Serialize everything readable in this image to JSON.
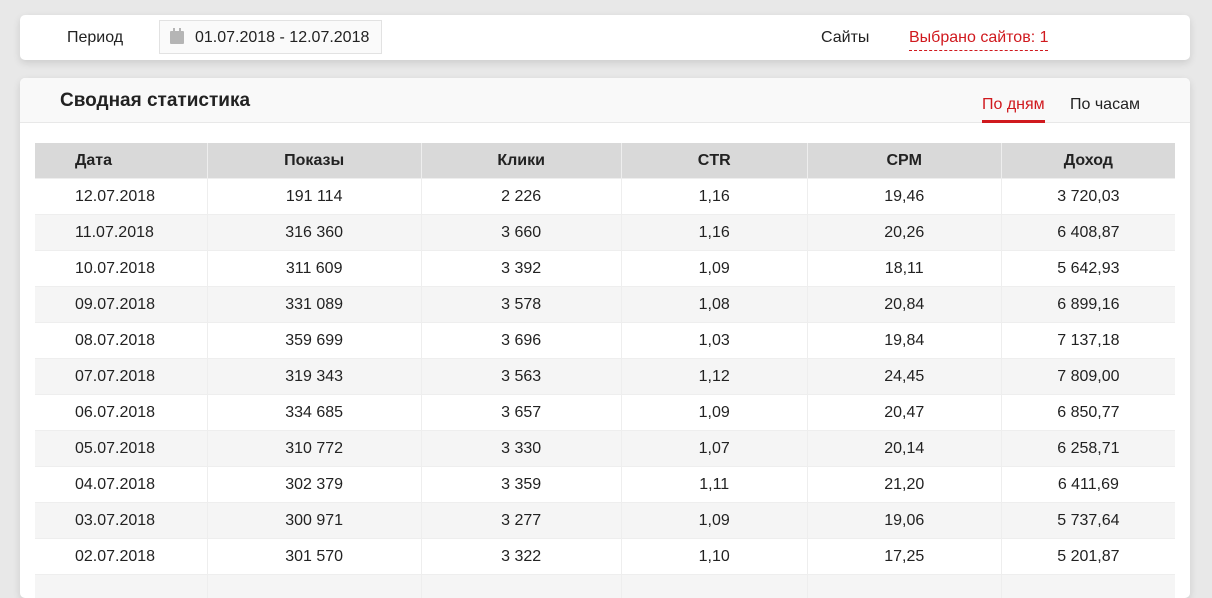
{
  "filters": {
    "period_label": "Период",
    "period_value": "01.07.2018 - 12.07.2018",
    "sites_label": "Сайты",
    "sites_value": "Выбрано сайтов: 1"
  },
  "main": {
    "title": "Сводная статистика",
    "tabs": [
      {
        "label": "По дням",
        "active": true
      },
      {
        "label": "По часам",
        "active": false
      }
    ],
    "accent": "#d0191e"
  },
  "table": {
    "columns": [
      "Дата",
      "Показы",
      "Клики",
      "CTR",
      "CPM",
      "Доход"
    ],
    "rows": [
      [
        "12.07.2018",
        "191 114",
        "2 226",
        "1,16",
        "19,46",
        "3 720,03"
      ],
      [
        "11.07.2018",
        "316 360",
        "3 660",
        "1,16",
        "20,26",
        "6 408,87"
      ],
      [
        "10.07.2018",
        "311 609",
        "3 392",
        "1,09",
        "18,11",
        "5 642,93"
      ],
      [
        "09.07.2018",
        "331 089",
        "3 578",
        "1,08",
        "20,84",
        "6 899,16"
      ],
      [
        "08.07.2018",
        "359 699",
        "3 696",
        "1,03",
        "19,84",
        "7 137,18"
      ],
      [
        "07.07.2018",
        "319 343",
        "3 563",
        "1,12",
        "24,45",
        "7 809,00"
      ],
      [
        "06.07.2018",
        "334 685",
        "3 657",
        "1,09",
        "20,47",
        "6 850,77"
      ],
      [
        "05.07.2018",
        "310 772",
        "3 330",
        "1,07",
        "20,14",
        "6 258,71"
      ],
      [
        "04.07.2018",
        "302 379",
        "3 359",
        "1,11",
        "21,20",
        "6 411,69"
      ],
      [
        "03.07.2018",
        "300 971",
        "3 277",
        "1,09",
        "19,06",
        "5 737,64"
      ],
      [
        "02.07.2018",
        "301 570",
        "3 322",
        "1,10",
        "17,25",
        "5 201,87"
      ]
    ]
  }
}
